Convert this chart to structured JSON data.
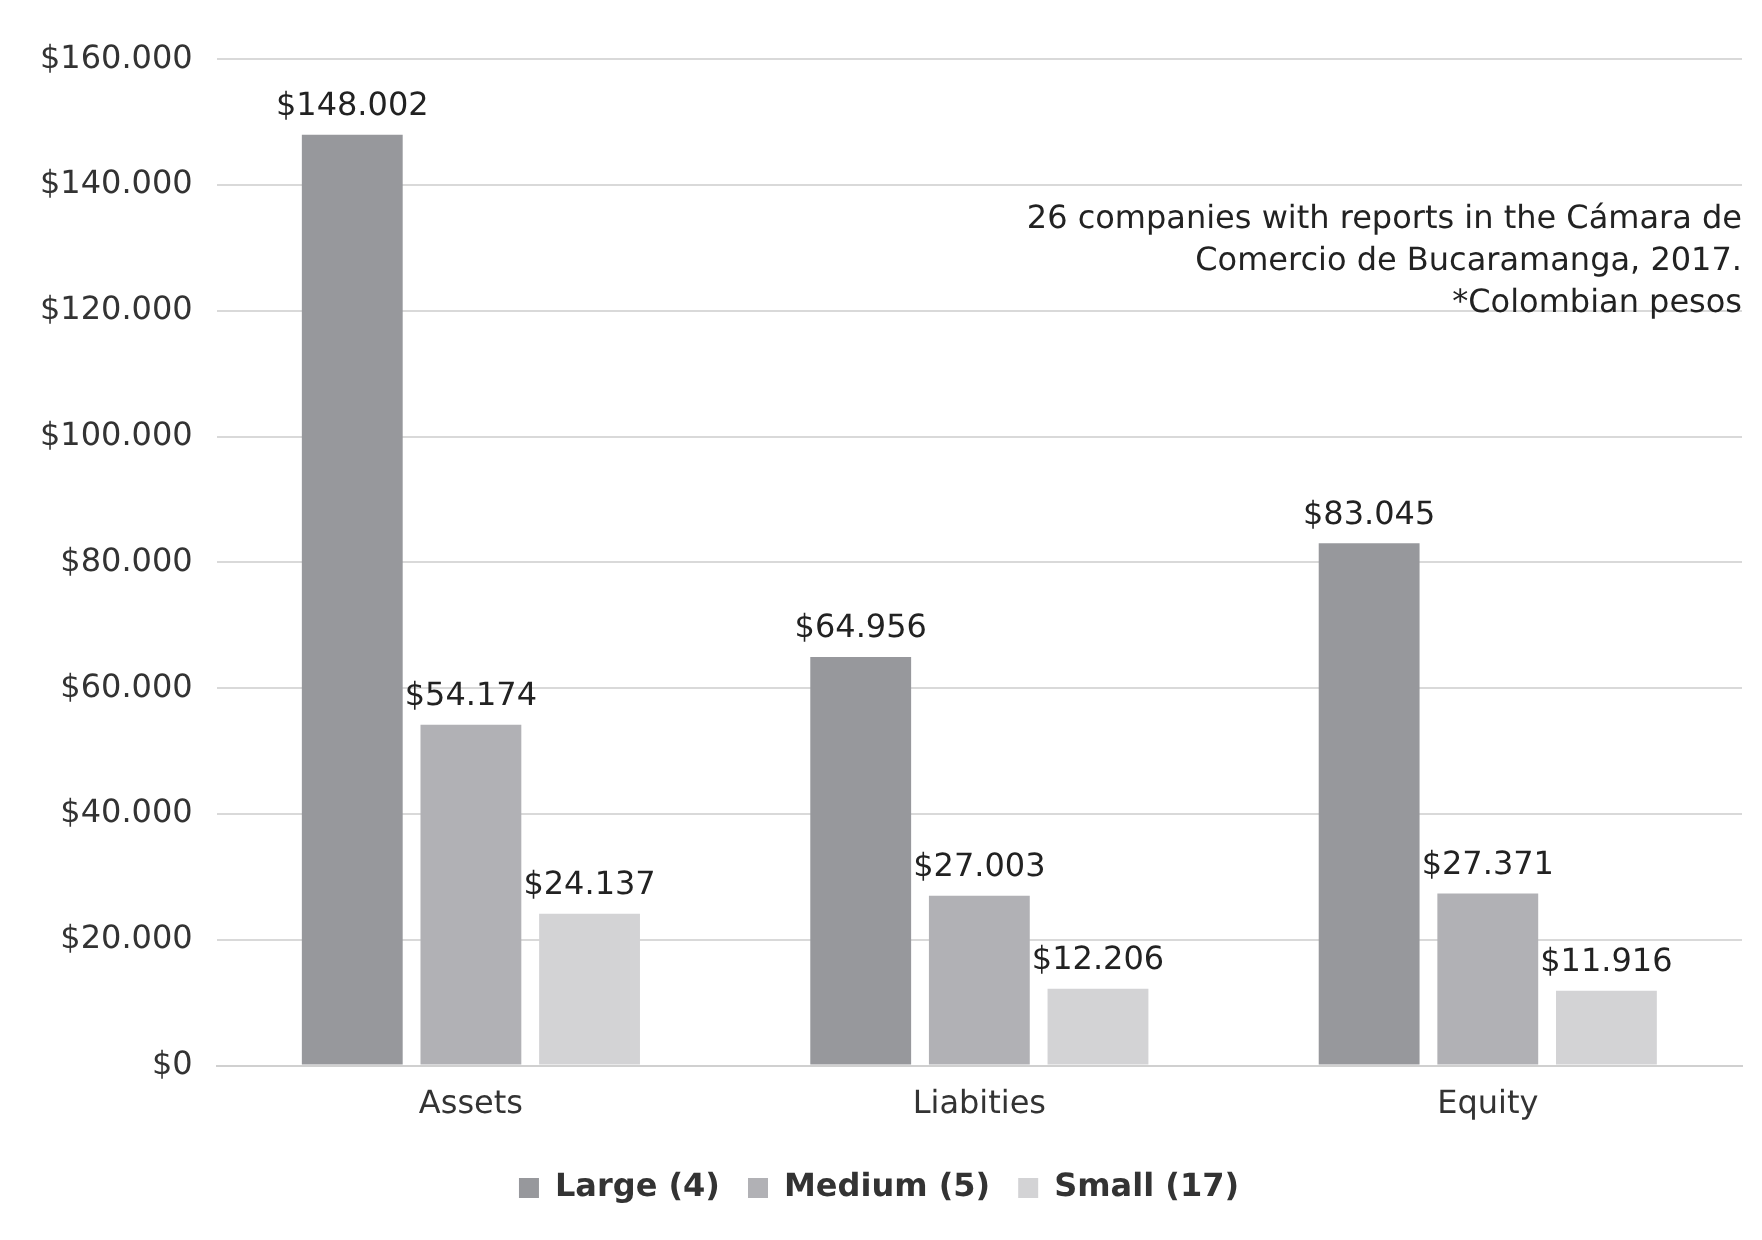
{
  "chart_data": {
    "type": "bar",
    "categories": [
      "Assets",
      "Liabities",
      "Equity"
    ],
    "series": [
      {
        "name": "Large (4)",
        "color": "#97989c",
        "values": [
          148002,
          64956,
          83045
        ],
        "value_labels": [
          "$148.002",
          "$64.956",
          "$83.045"
        ]
      },
      {
        "name": "Medium (5)",
        "color": "#b1b1b5",
        "values": [
          54174,
          27003,
          27371
        ],
        "value_labels": [
          "$54.174",
          "$27.003",
          "$27.371"
        ]
      },
      {
        "name": "Small (17)",
        "color": "#d3d3d5",
        "values": [
          24137,
          12206,
          11916
        ],
        "value_labels": [
          "$24.137",
          "$12.206",
          "$11.916"
        ]
      }
    ],
    "ylim": [
      0,
      160000
    ],
    "yticks": [
      {
        "value": 0,
        "label": "$0"
      },
      {
        "value": 20000,
        "label": "$20.000"
      },
      {
        "value": 40000,
        "label": "$40.000"
      },
      {
        "value": 60000,
        "label": "$60.000"
      },
      {
        "value": 80000,
        "label": "$80.000"
      },
      {
        "value": 100000,
        "label": "$100.000"
      },
      {
        "value": 120000,
        "label": "$120.000"
      },
      {
        "value": 140000,
        "label": "$140.000"
      },
      {
        "value": 160000,
        "label": "$160.000"
      }
    ],
    "annotations": [
      "26 companies with reports in the Cámara de\nComercio de Bucaramanga, 2017.\n*Colombian pesos"
    ],
    "grid": "y",
    "legend": "bottom"
  }
}
